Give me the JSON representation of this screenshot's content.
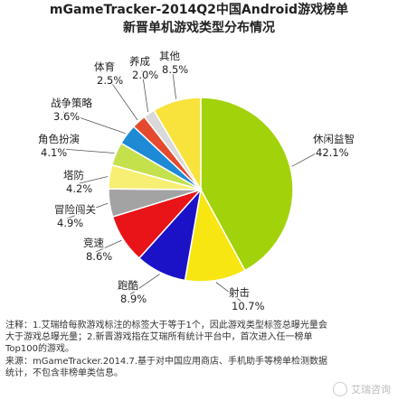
{
  "chart_data": {
    "type": "pie",
    "title": "mGameTracker-2014Q2中国Android游戏榜单",
    "subtitle": "新晋单机游戏类型分布情况",
    "unit": "%",
    "slices": [
      {
        "name": "休闲益智",
        "value": 42.1,
        "value_label": "42.1%",
        "color": "#a2d20a"
      },
      {
        "name": "射击",
        "value": 10.7,
        "value_label": "10.7%",
        "color": "#f8e612"
      },
      {
        "name": "跑酷",
        "value": 8.9,
        "value_label": "8.9%",
        "color": "#1b12c7"
      },
      {
        "name": "竞速",
        "value": 8.6,
        "value_label": "8.6%",
        "color": "#e81418"
      },
      {
        "name": "冒险闯关",
        "value": 4.9,
        "value_label": "4.9%",
        "color": "#a3a3a3"
      },
      {
        "name": "塔防",
        "value": 4.2,
        "value_label": "4.2%",
        "color": "#f7ef73"
      },
      {
        "name": "角色扮演",
        "value": 4.1,
        "value_label": "4.1%",
        "color": "#c4e04a"
      },
      {
        "name": "战争策略",
        "value": 3.6,
        "value_label": "3.6%",
        "color": "#1e8ad6"
      },
      {
        "name": "体育",
        "value": 2.5,
        "value_label": "2.5%",
        "color": "#e44a2e"
      },
      {
        "name": "养成",
        "value": 2.0,
        "value_label": "2.0%",
        "color": "#d9d9d9"
      },
      {
        "name": "其他",
        "value": 8.5,
        "value_label": "8.5%",
        "color": "#f8e23c"
      }
    ]
  },
  "notes": {
    "line1": "注释：1.艾瑞给每款游戏标注的标签大于等于1个，因此游戏类型标签总曝光量会",
    "line2": "大于游戏总曝光量；2.新晋游戏指在艾瑞所有统计平台中，首次进入任一榜单",
    "line3": "Top100的游戏。"
  },
  "source": {
    "line1": "来源：mGameTracker.2014.7.基于对中国应用商店、手机助手等榜单检测数据",
    "line2": "统计，不包含非榜单类信息。"
  },
  "watermark": "艾瑞咨询"
}
